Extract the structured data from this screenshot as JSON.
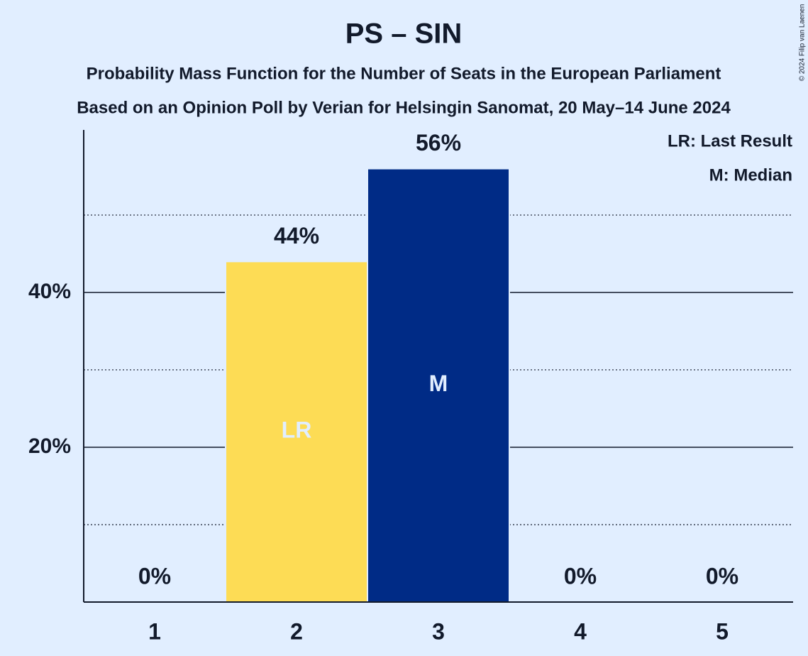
{
  "chart_data": {
    "type": "bar",
    "title": "PS – SIN",
    "subtitle": "Probability Mass Function for the Number of Seats in the European Parliament",
    "subtitle2": "Based on an Opinion Poll by Verian for Helsingin Sanomat, 20 May–14 June 2024",
    "copyright": "© 2024 Filip van Laenen",
    "categories": [
      "1",
      "2",
      "3",
      "4",
      "5"
    ],
    "values": [
      0,
      44,
      56,
      0,
      0
    ],
    "value_labels": [
      "0%",
      "44%",
      "56%",
      "0%",
      "0%"
    ],
    "colors": [
      "#002b86",
      "#fddc55",
      "#002b86",
      "#002b86",
      "#002b86"
    ],
    "bar_annotations": [
      null,
      "LR",
      "M",
      null,
      null
    ],
    "legend": [
      "LR: Last Result",
      "M: Median"
    ],
    "ylim": [
      0,
      61
    ],
    "yticks": [
      {
        "value": 20,
        "label": "20%"
      },
      {
        "value": 40,
        "label": "40%"
      }
    ],
    "minor_yticks": [
      10,
      30,
      50
    ],
    "grid": true
  }
}
